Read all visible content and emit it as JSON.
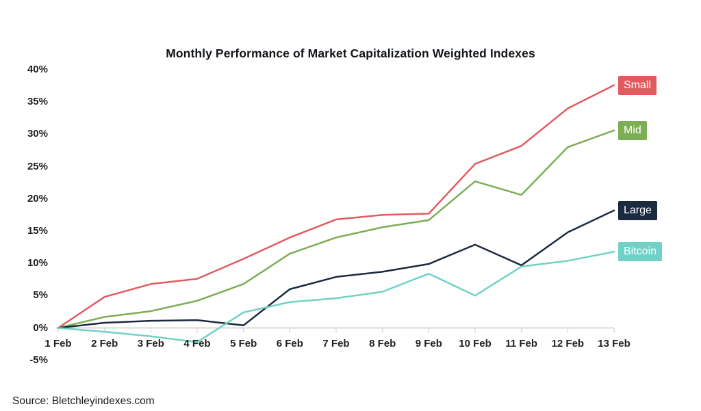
{
  "title": "Monthly Performance of Market Capitalization Weighted Indexes",
  "source": "Source: Bletchleyindexes.com",
  "chart_data": {
    "type": "line",
    "title": "Monthly Performance of Market Capitalization Weighted Indexes",
    "xlabel": "",
    "ylabel": "",
    "ylim": [
      -5,
      40
    ],
    "grid": false,
    "legend_position": "right-at-line-ends",
    "axis_color": "#d9d9d9",
    "text_color": "#1f1f1f",
    "x_labels": [
      "1 Feb",
      "2 Feb",
      "3 Feb",
      "4 Feb",
      "5 Feb",
      "6 Feb",
      "7 Feb",
      "8 Feb",
      "9 Feb",
      "10 Feb",
      "11 Feb",
      "12 Feb",
      "13 Feb"
    ],
    "y_ticks": [
      {
        "label": "40%",
        "value": 40
      },
      {
        "label": "35%",
        "value": 35
      },
      {
        "label": "30%",
        "value": 30
      },
      {
        "label": "25%",
        "value": 25
      },
      {
        "label": "20%",
        "value": 20
      },
      {
        "label": "15%",
        "value": 15
      },
      {
        "label": "10%",
        "value": 10
      },
      {
        "label": "5%",
        "value": 5
      },
      {
        "label": "0%",
        "value": 0
      },
      {
        "label": "-5%",
        "value": -5
      }
    ],
    "series": [
      {
        "name": "Small",
        "color": "#e15b5e",
        "values": [
          0,
          4.8,
          6.8,
          7.6,
          10.7,
          14.0,
          16.8,
          17.5,
          17.7,
          25.4,
          28.2,
          34.0,
          37.6
        ]
      },
      {
        "name": "Mid",
        "color": "#7cae55",
        "values": [
          0,
          1.7,
          2.6,
          4.2,
          6.8,
          11.5,
          14.0,
          15.6,
          16.7,
          22.7,
          20.6,
          28.0,
          30.6
        ]
      },
      {
        "name": "Large",
        "color": "#1b2a40",
        "values": [
          0,
          0.8,
          1.1,
          1.2,
          0.4,
          6.0,
          7.9,
          8.7,
          9.9,
          12.9,
          9.7,
          14.8,
          18.2
        ]
      },
      {
        "name": "Bitcoin",
        "color": "#70d2c6",
        "values": [
          0,
          -0.6,
          -1.3,
          -2.2,
          2.4,
          4.0,
          4.6,
          5.6,
          8.4,
          5.0,
          9.5,
          10.4,
          11.8
        ]
      }
    ]
  }
}
